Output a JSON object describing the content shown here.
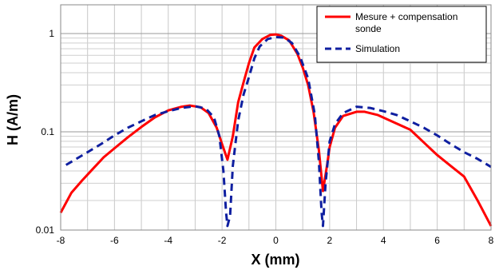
{
  "chart_data": {
    "type": "line",
    "xlabel": "X (mm)",
    "ylabel": "H (A/m)",
    "xlim": [
      -8,
      8
    ],
    "ylim": [
      0.01,
      2
    ],
    "y_scale": "log",
    "grid": true,
    "legend_position": "top-right",
    "x_ticks": [
      "-8",
      "-6",
      "-4",
      "-2",
      "0",
      "2",
      "4",
      "6",
      "8"
    ],
    "y_ticks": [
      "0.01",
      "0.1",
      "1"
    ],
    "series": [
      {
        "name": "Mesure + compensation sonde",
        "color": "#ff0000",
        "style": "solid",
        "points": [
          [
            -8,
            0.015
          ],
          [
            -7.6,
            0.024
          ],
          [
            -7.2,
            0.032
          ],
          [
            -6.8,
            0.042
          ],
          [
            -6.4,
            0.055
          ],
          [
            -6,
            0.068
          ],
          [
            -5.5,
            0.088
          ],
          [
            -5,
            0.112
          ],
          [
            -4.5,
            0.14
          ],
          [
            -4,
            0.165
          ],
          [
            -3.5,
            0.18
          ],
          [
            -3.2,
            0.185
          ],
          [
            -2.8,
            0.178
          ],
          [
            -2.5,
            0.155
          ],
          [
            -2.2,
            0.11
          ],
          [
            -2,
            0.075
          ],
          [
            -1.8,
            0.052
          ],
          [
            -1.6,
            0.09
          ],
          [
            -1.4,
            0.2
          ],
          [
            -1.2,
            0.32
          ],
          [
            -1,
            0.5
          ],
          [
            -0.8,
            0.72
          ],
          [
            -0.5,
            0.88
          ],
          [
            -0.2,
            0.97
          ],
          [
            0,
            0.98
          ],
          [
            0.2,
            0.95
          ],
          [
            0.5,
            0.85
          ],
          [
            0.8,
            0.62
          ],
          [
            1,
            0.45
          ],
          [
            1.2,
            0.3
          ],
          [
            1.4,
            0.16
          ],
          [
            1.6,
            0.065
          ],
          [
            1.75,
            0.025
          ],
          [
            1.9,
            0.045
          ],
          [
            2,
            0.07
          ],
          [
            2.2,
            0.11
          ],
          [
            2.5,
            0.145
          ],
          [
            3,
            0.16
          ],
          [
            3.3,
            0.16
          ],
          [
            3.8,
            0.148
          ],
          [
            4.2,
            0.132
          ],
          [
            5,
            0.105
          ],
          [
            5.5,
            0.078
          ],
          [
            6,
            0.058
          ],
          [
            6.5,
            0.045
          ],
          [
            7,
            0.035
          ],
          [
            7.5,
            0.02
          ],
          [
            8,
            0.011
          ]
        ]
      },
      {
        "name": "Simulation",
        "color": "#0f1fa0",
        "style": "dashed",
        "points": [
          [
            -7.8,
            0.046
          ],
          [
            -7,
            0.062
          ],
          [
            -6.5,
            0.075
          ],
          [
            -6,
            0.092
          ],
          [
            -5.5,
            0.11
          ],
          [
            -5,
            0.128
          ],
          [
            -4.5,
            0.148
          ],
          [
            -4,
            0.162
          ],
          [
            -3.5,
            0.175
          ],
          [
            -3,
            0.182
          ],
          [
            -2.6,
            0.172
          ],
          [
            -2.3,
            0.14
          ],
          [
            -2.1,
            0.09
          ],
          [
            -1.95,
            0.04
          ],
          [
            -1.85,
            0.015
          ],
          [
            -1.8,
            0.011
          ],
          [
            -1.7,
            0.014
          ],
          [
            -1.6,
            0.045
          ],
          [
            -1.4,
            0.13
          ],
          [
            -1.2,
            0.24
          ],
          [
            -1,
            0.36
          ],
          [
            -0.8,
            0.56
          ],
          [
            -0.6,
            0.74
          ],
          [
            -0.3,
            0.88
          ],
          [
            0,
            0.92
          ],
          [
            0.3,
            0.91
          ],
          [
            0.6,
            0.8
          ],
          [
            0.9,
            0.58
          ],
          [
            1.2,
            0.35
          ],
          [
            1.45,
            0.15
          ],
          [
            1.6,
            0.05
          ],
          [
            1.7,
            0.015
          ],
          [
            1.75,
            0.011
          ],
          [
            1.85,
            0.03
          ],
          [
            2,
            0.08
          ],
          [
            2.2,
            0.12
          ],
          [
            2.5,
            0.155
          ],
          [
            3,
            0.18
          ],
          [
            3.5,
            0.175
          ],
          [
            4,
            0.162
          ],
          [
            4.5,
            0.148
          ],
          [
            5,
            0.128
          ],
          [
            5.5,
            0.11
          ],
          [
            6,
            0.092
          ],
          [
            6.5,
            0.075
          ],
          [
            7,
            0.062
          ],
          [
            7.5,
            0.053
          ],
          [
            8,
            0.044
          ]
        ]
      }
    ]
  }
}
